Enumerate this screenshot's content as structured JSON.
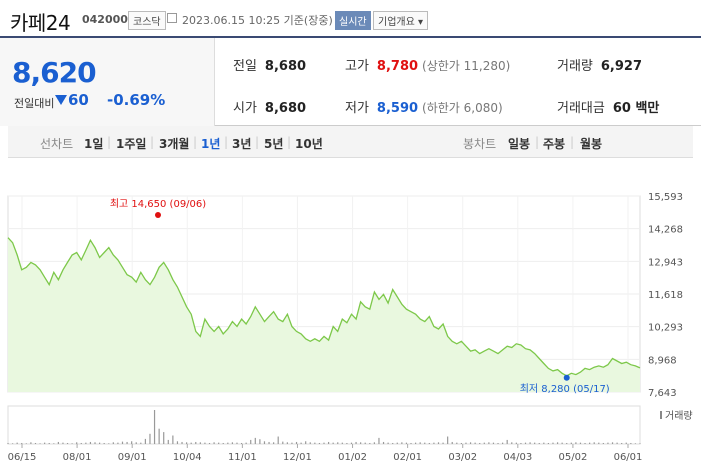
{
  "header": {
    "name": "카페24",
    "code": "042000",
    "market": "코스닥",
    "time": "2023.06.15 10:25 기준(장중)",
    "realtime_label": "실시간",
    "company_info_label": "기업개요 ▾"
  },
  "summary": {
    "price": "8,620",
    "change_label": "전일대비",
    "change": "60",
    "change_pct": "-0.69%",
    "prev_close_label": "전일",
    "prev_close": "8,680",
    "high_label": "고가",
    "high": "8,780",
    "upper_limit": "(상한가 11,280)",
    "volume_label": "거래량",
    "volume": "6,927",
    "open_label": "시가",
    "open": "8,680",
    "low_label": "저가",
    "low": "8,590",
    "lower_limit": "(하한가 6,080)",
    "amount_label": "거래대금",
    "amount": "60 백만"
  },
  "periods": {
    "line_label": "선차트",
    "line_items": [
      "1일",
      "1주일",
      "3개월",
      "1년",
      "3년",
      "5년",
      "10년"
    ],
    "selected": "1년",
    "candle_label": "봉차트",
    "candle_items": [
      "일봉",
      "주봉",
      "월봉"
    ]
  },
  "chart_data": {
    "type": "area",
    "x_ticks": [
      "06/15",
      "08/01",
      "09/01",
      "10/04",
      "11/01",
      "12/01",
      "01/02",
      "02/01",
      "03/02",
      "04/03",
      "05/02",
      "06/01"
    ],
    "y_ticks": [
      "15,593",
      "14,268",
      "12,943",
      "11,618",
      "10,293",
      "8,968",
      "7,643"
    ],
    "ylim": [
      7643,
      15593
    ],
    "high_annotation": "최고 14,650 (09/06)",
    "low_annotation": "최저 8,280 (05/17)",
    "volume_label": "거래량",
    "colors": {
      "line": "#7dc84a",
      "fill": "#e9f8df",
      "high": "#e01010",
      "low": "#1a5fd1",
      "volume": "#999999"
    },
    "series": [
      {
        "values": [
          13900,
          13700,
          13200,
          12600,
          12700,
          12900,
          12800,
          12600,
          12300,
          12000,
          12500,
          12200,
          12600,
          12900,
          13200,
          13300,
          13000,
          13400,
          13800,
          13500,
          13100,
          13300,
          13500,
          13200,
          13000,
          12700,
          12400,
          12300,
          12100,
          12500,
          12200,
          12000,
          12300,
          12700,
          12900,
          12600,
          12200,
          11900,
          11500,
          11100,
          10800,
          10100,
          9900,
          10600,
          10300,
          10100,
          10300,
          10000,
          10200,
          10500,
          10300,
          10600,
          10400,
          10700,
          11100,
          10800,
          10500,
          10700,
          10900,
          10600,
          10500,
          10800,
          10300,
          10100,
          10000,
          9800,
          9700,
          9800,
          9700,
          9900,
          9750,
          10300,
          10100,
          10600,
          10450,
          10800,
          10600,
          11300,
          11100,
          11000,
          11700,
          11400,
          11600,
          11250,
          11800,
          11500,
          11200,
          11000,
          10900,
          10800,
          10600,
          10500,
          10700,
          10300,
          10200,
          10400,
          9900,
          9700,
          9600,
          9700,
          9500,
          9300,
          9350,
          9200,
          9300,
          9400,
          9300,
          9200,
          9350,
          9500,
          9450,
          9600,
          9550,
          9400,
          9350,
          9200,
          9000,
          8800,
          8600,
          8500,
          8550,
          8400,
          8300,
          8400,
          8350,
          8450,
          8600,
          8550,
          8650,
          8700,
          8650,
          8750,
          9000,
          8900,
          8800,
          8850,
          8750,
          8700,
          8620
        ]
      }
    ],
    "volume": [
      0.03,
      0.02,
      0.04,
      0.03,
      0.02,
      0.05,
      0.03,
      0.02,
      0.04,
      0.03,
      0.02,
      0.06,
      0.04,
      0.03,
      0.02,
      0.05,
      0.03,
      0.04,
      0.06,
      0.05,
      0.04,
      0.03,
      0.02,
      0.05,
      0.04,
      0.07,
      0.06,
      0.08,
      0.05,
      0.04,
      0.15,
      0.3,
      1.0,
      0.45,
      0.35,
      0.12,
      0.25,
      0.08,
      0.06,
      0.05,
      0.04,
      0.06,
      0.05,
      0.04,
      0.03,
      0.05,
      0.04,
      0.03,
      0.04,
      0.05,
      0.04,
      0.03,
      0.04,
      0.12,
      0.18,
      0.14,
      0.08,
      0.06,
      0.05,
      0.22,
      0.07,
      0.05,
      0.04,
      0.06,
      0.04,
      0.08,
      0.05,
      0.04,
      0.03,
      0.04,
      0.06,
      0.04,
      0.05,
      0.04,
      0.03,
      0.04,
      0.06,
      0.05,
      0.04,
      0.03,
      0.05,
      0.18,
      0.06,
      0.04,
      0.03,
      0.04,
      0.05,
      0.04,
      0.03,
      0.04,
      0.05,
      0.04,
      0.03,
      0.04,
      0.05,
      0.04,
      0.22,
      0.06,
      0.04,
      0.03,
      0.04,
      0.05,
      0.04,
      0.03,
      0.04,
      0.05,
      0.04,
      0.03,
      0.04,
      0.12,
      0.05,
      0.04,
      0.03,
      0.04,
      0.05,
      0.04,
      0.03,
      0.04,
      0.03,
      0.04,
      0.05,
      0.04,
      0.03,
      0.04,
      0.05,
      0.04,
      0.03,
      0.04,
      0.05,
      0.04,
      0.03,
      0.04,
      0.05,
      0.04,
      0.03,
      0.04,
      0.03,
      0.02,
      0.02
    ]
  }
}
